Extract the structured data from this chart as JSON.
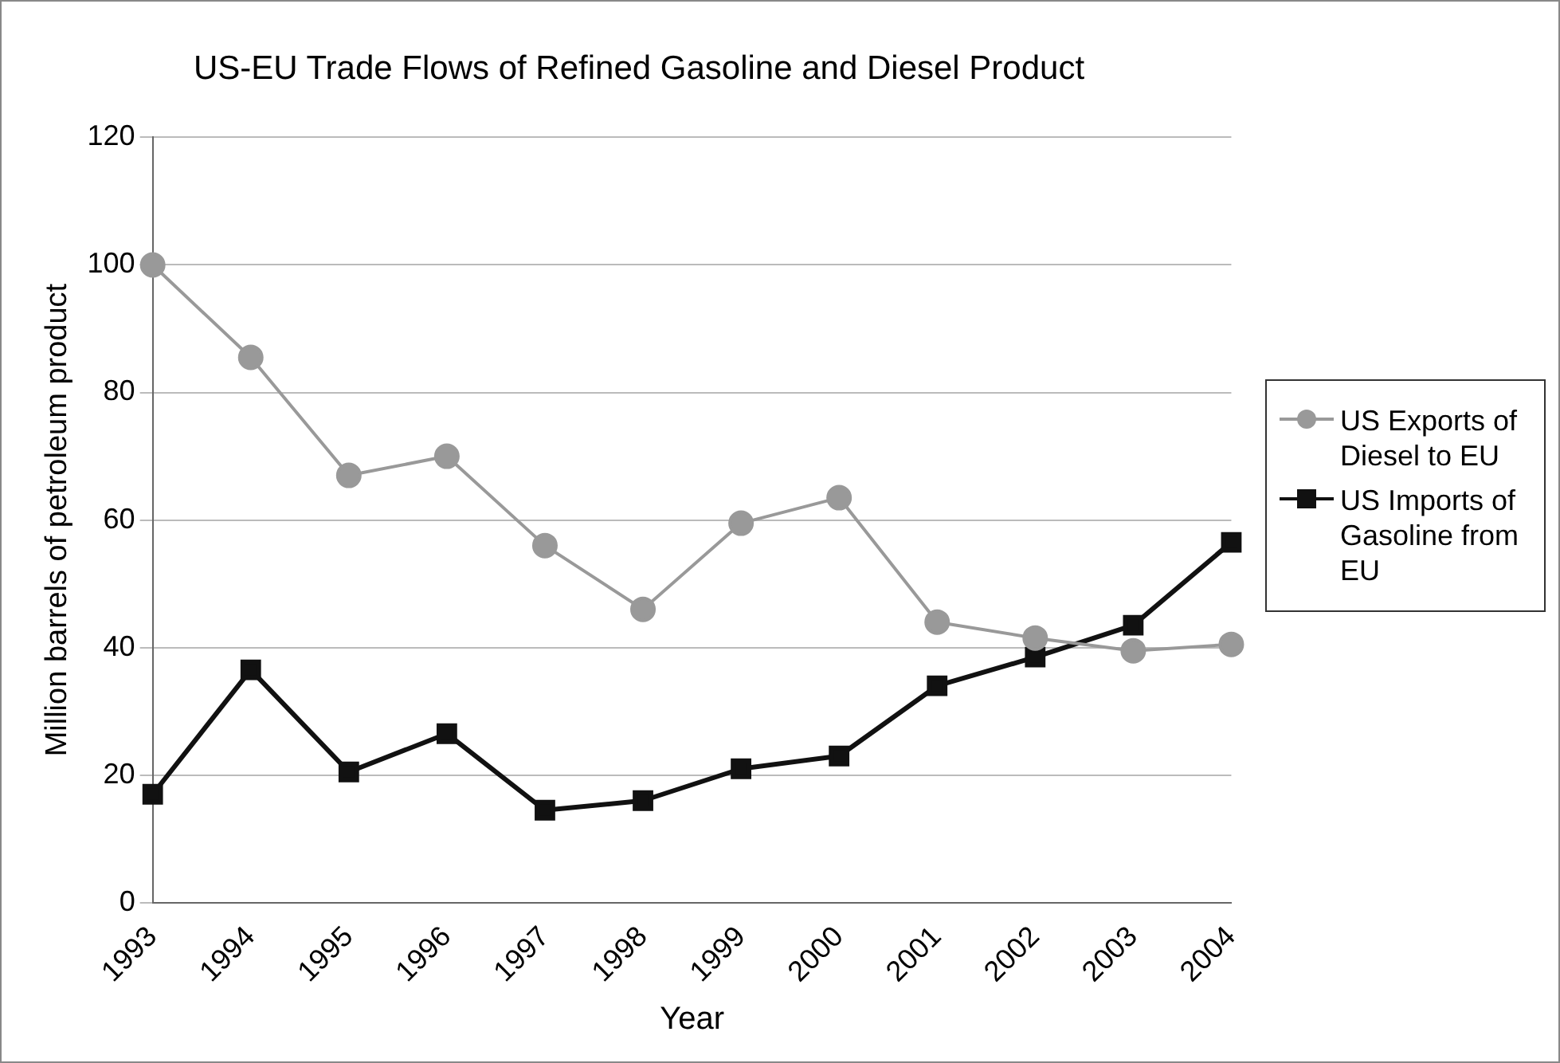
{
  "chart_data": {
    "type": "line",
    "title": "US-EU Trade Flows of Refined Gasoline and Diesel Product",
    "xlabel": "Year",
    "ylabel": "Million barrels of petroleum product",
    "categories": [
      "1993",
      "1994",
      "1995",
      "1996",
      "1997",
      "1998",
      "1999",
      "2000",
      "2001",
      "2002",
      "2003",
      "2004"
    ],
    "series": [
      {
        "name": "US Exports of Diesel to EU",
        "color": "#999999",
        "marker": "circle",
        "values": [
          100,
          85.5,
          67,
          70,
          56,
          46,
          59.5,
          63.5,
          44,
          41.5,
          39.5,
          40.5
        ]
      },
      {
        "name": "US Imports of Gasoline from EU",
        "color": "#111111",
        "marker": "square",
        "values": [
          17,
          36.5,
          20.5,
          26.5,
          14.5,
          16,
          21,
          23,
          34,
          38.5,
          43.5,
          56.5
        ]
      }
    ],
    "ylim": [
      0,
      120
    ],
    "yticks": [
      0,
      20,
      40,
      60,
      80,
      100,
      120
    ],
    "grid": "y",
    "legend": "right"
  }
}
